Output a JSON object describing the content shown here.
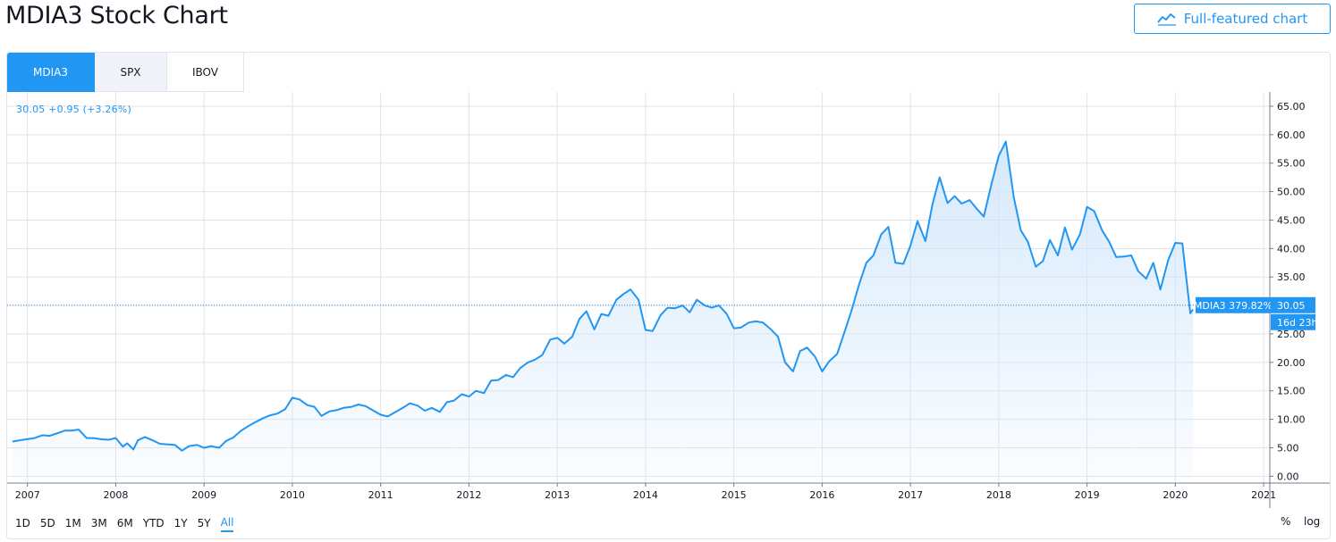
{
  "header": {
    "title": "MDIA3 Stock Chart",
    "full_button_label": "Full-featured chart"
  },
  "tabs": [
    {
      "label": "MDIA3",
      "active": true
    },
    {
      "label": "SPX",
      "active": false
    },
    {
      "label": "IBOV",
      "active": false
    }
  ],
  "legend": {
    "value_text": "30.05 +0.95 (+3.26%)"
  },
  "price_badge": {
    "symbol_text": "MDIA3 379.82%",
    "price_text": "30.05",
    "countdown_text": "16d 23h"
  },
  "range_buttons": [
    "1D",
    "5D",
    "1M",
    "3M",
    "6M",
    "YTD",
    "1Y",
    "5Y",
    "All"
  ],
  "range_selected": "All",
  "scale_buttons": {
    "percent": "%",
    "log": "log"
  },
  "colors": {
    "accent": "#2196f3",
    "line": "#2196f3",
    "fill_top": "#cfe5fb",
    "grid": "#e0e3eb"
  },
  "chart_data": {
    "type": "area",
    "series": [
      {
        "name": "MDIA3",
        "points": [
          [
            2006.83,
            6.1
          ],
          [
            2006.95,
            6.4
          ],
          [
            2007.08,
            6.7
          ],
          [
            2007.17,
            7.2
          ],
          [
            2007.25,
            7.1
          ],
          [
            2007.33,
            7.5
          ],
          [
            2007.42,
            8.0
          ],
          [
            2007.5,
            8.0
          ],
          [
            2007.58,
            8.2
          ],
          [
            2007.67,
            6.7
          ],
          [
            2007.75,
            6.7
          ],
          [
            2007.83,
            6.5
          ],
          [
            2007.92,
            6.4
          ],
          [
            2008.0,
            6.7
          ],
          [
            2008.08,
            5.2
          ],
          [
            2008.13,
            5.8
          ],
          [
            2008.2,
            4.7
          ],
          [
            2008.25,
            6.3
          ],
          [
            2008.33,
            6.9
          ],
          [
            2008.42,
            6.3
          ],
          [
            2008.5,
            5.7
          ],
          [
            2008.58,
            5.6
          ],
          [
            2008.67,
            5.5
          ],
          [
            2008.75,
            4.5
          ],
          [
            2008.83,
            5.3
          ],
          [
            2008.92,
            5.5
          ],
          [
            2009.0,
            5.0
          ],
          [
            2009.08,
            5.3
          ],
          [
            2009.17,
            5.0
          ],
          [
            2009.25,
            6.2
          ],
          [
            2009.33,
            6.8
          ],
          [
            2009.42,
            8.0
          ],
          [
            2009.5,
            8.8
          ],
          [
            2009.58,
            9.5
          ],
          [
            2009.67,
            10.2
          ],
          [
            2009.75,
            10.7
          ],
          [
            2009.83,
            11.0
          ],
          [
            2009.92,
            11.8
          ],
          [
            2010.0,
            13.8
          ],
          [
            2010.08,
            13.5
          ],
          [
            2010.17,
            12.5
          ],
          [
            2010.25,
            12.2
          ],
          [
            2010.33,
            10.6
          ],
          [
            2010.42,
            11.4
          ],
          [
            2010.5,
            11.6
          ],
          [
            2010.58,
            12.0
          ],
          [
            2010.67,
            12.2
          ],
          [
            2010.75,
            12.6
          ],
          [
            2010.83,
            12.3
          ],
          [
            2010.92,
            11.5
          ],
          [
            2011.0,
            10.8
          ],
          [
            2011.08,
            10.5
          ],
          [
            2011.17,
            11.3
          ],
          [
            2011.25,
            12.0
          ],
          [
            2011.33,
            12.8
          ],
          [
            2011.42,
            12.4
          ],
          [
            2011.5,
            11.5
          ],
          [
            2011.58,
            12.0
          ],
          [
            2011.67,
            11.3
          ],
          [
            2011.75,
            13.0
          ],
          [
            2011.83,
            13.3
          ],
          [
            2011.92,
            14.4
          ],
          [
            2012.0,
            14.0
          ],
          [
            2012.08,
            15.0
          ],
          [
            2012.17,
            14.6
          ],
          [
            2012.25,
            16.8
          ],
          [
            2012.33,
            16.9
          ],
          [
            2012.42,
            17.8
          ],
          [
            2012.5,
            17.4
          ],
          [
            2012.58,
            19.0
          ],
          [
            2012.67,
            20.0
          ],
          [
            2012.75,
            20.5
          ],
          [
            2012.83,
            21.3
          ],
          [
            2012.92,
            24.0
          ],
          [
            2013.0,
            24.3
          ],
          [
            2013.08,
            23.3
          ],
          [
            2013.17,
            24.5
          ],
          [
            2013.25,
            27.6
          ],
          [
            2013.33,
            29.0
          ],
          [
            2013.42,
            25.8
          ],
          [
            2013.5,
            28.5
          ],
          [
            2013.58,
            28.2
          ],
          [
            2013.67,
            31.0
          ],
          [
            2013.75,
            32.0
          ],
          [
            2013.83,
            32.8
          ],
          [
            2013.92,
            31.0
          ],
          [
            2014.0,
            25.7
          ],
          [
            2014.08,
            25.5
          ],
          [
            2014.17,
            28.3
          ],
          [
            2014.25,
            29.6
          ],
          [
            2014.33,
            29.5
          ],
          [
            2014.42,
            30.0
          ],
          [
            2014.5,
            28.8
          ],
          [
            2014.58,
            31.0
          ],
          [
            2014.67,
            30.0
          ],
          [
            2014.75,
            29.6
          ],
          [
            2014.83,
            30.0
          ],
          [
            2014.92,
            28.5
          ],
          [
            2015.0,
            26.0
          ],
          [
            2015.08,
            26.1
          ],
          [
            2015.17,
            27.0
          ],
          [
            2015.25,
            27.2
          ],
          [
            2015.33,
            27.0
          ],
          [
            2015.42,
            25.8
          ],
          [
            2015.5,
            24.5
          ],
          [
            2015.58,
            20.0
          ],
          [
            2015.67,
            18.4
          ],
          [
            2015.75,
            22.0
          ],
          [
            2015.83,
            22.6
          ],
          [
            2015.92,
            21.0
          ],
          [
            2016.0,
            18.4
          ],
          [
            2016.08,
            20.2
          ],
          [
            2016.17,
            21.5
          ],
          [
            2016.25,
            25.2
          ],
          [
            2016.33,
            29.0
          ],
          [
            2016.42,
            33.8
          ],
          [
            2016.5,
            37.5
          ],
          [
            2016.58,
            38.8
          ],
          [
            2016.67,
            42.5
          ],
          [
            2016.75,
            43.8
          ],
          [
            2016.83,
            37.5
          ],
          [
            2016.92,
            37.3
          ],
          [
            2017.0,
            40.5
          ],
          [
            2017.08,
            44.8
          ],
          [
            2017.17,
            41.3
          ],
          [
            2017.25,
            47.8
          ],
          [
            2017.33,
            52.5
          ],
          [
            2017.42,
            48.0
          ],
          [
            2017.5,
            49.2
          ],
          [
            2017.58,
            47.9
          ],
          [
            2017.67,
            48.5
          ],
          [
            2017.75,
            47.0
          ],
          [
            2017.83,
            45.6
          ],
          [
            2017.92,
            51.5
          ],
          [
            2018.0,
            56.3
          ],
          [
            2018.08,
            58.8
          ],
          [
            2018.17,
            49.0
          ],
          [
            2018.25,
            43.2
          ],
          [
            2018.33,
            41.2
          ],
          [
            2018.42,
            36.8
          ],
          [
            2018.5,
            37.8
          ],
          [
            2018.58,
            41.5
          ],
          [
            2018.67,
            38.8
          ],
          [
            2018.75,
            43.7
          ],
          [
            2018.83,
            39.8
          ],
          [
            2018.92,
            42.5
          ],
          [
            2019.0,
            47.3
          ],
          [
            2019.08,
            46.6
          ],
          [
            2019.17,
            43.2
          ],
          [
            2019.25,
            41.2
          ],
          [
            2019.33,
            38.5
          ],
          [
            2019.42,
            38.6
          ],
          [
            2019.5,
            38.8
          ],
          [
            2019.58,
            36.0
          ],
          [
            2019.67,
            34.7
          ],
          [
            2019.75,
            37.5
          ],
          [
            2019.83,
            32.8
          ],
          [
            2019.92,
            38.0
          ],
          [
            2020.0,
            41.0
          ],
          [
            2020.08,
            40.9
          ],
          [
            2020.17,
            28.6
          ],
          [
            2020.2,
            29.3
          ]
        ]
      }
    ],
    "xticks": [
      "2007",
      "2008",
      "2009",
      "2010",
      "2011",
      "2012",
      "2013",
      "2014",
      "2015",
      "2016",
      "2017",
      "2018",
      "2019",
      "2020",
      "2021"
    ],
    "yticks": [
      "0.00",
      "5.00",
      "10.00",
      "15.00",
      "20.00",
      "25.00",
      "30.00",
      "35.00",
      "40.00",
      "45.00",
      "50.00",
      "55.00",
      "60.00",
      "65.00"
    ],
    "ylim": [
      -1.2,
      67.5
    ],
    "xlim": [
      2006.77,
      2021.07
    ],
    "last_price": 30.05,
    "grid": true
  }
}
